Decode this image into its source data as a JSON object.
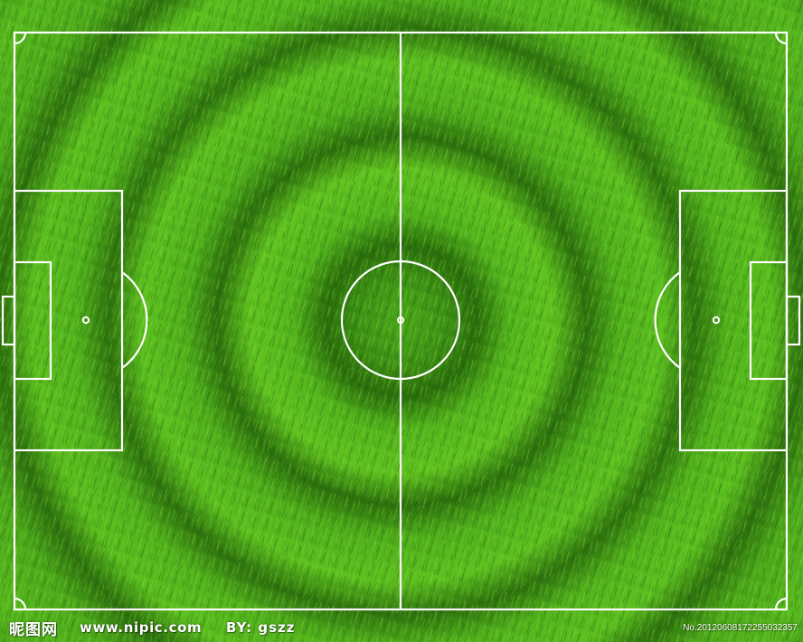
{
  "image": {
    "subject": "top-down soccer pitch on grass texture",
    "colors": {
      "grass_light": "#5fc21f",
      "grass_mid": "#3f9a14",
      "grass_dark": "#1f5a0a",
      "line": "#ffffff"
    }
  },
  "watermark": {
    "logo_text": "昵图网",
    "url": "www.nipic.com",
    "author": "BY: gszz",
    "number": "No.20120608172255032357"
  }
}
